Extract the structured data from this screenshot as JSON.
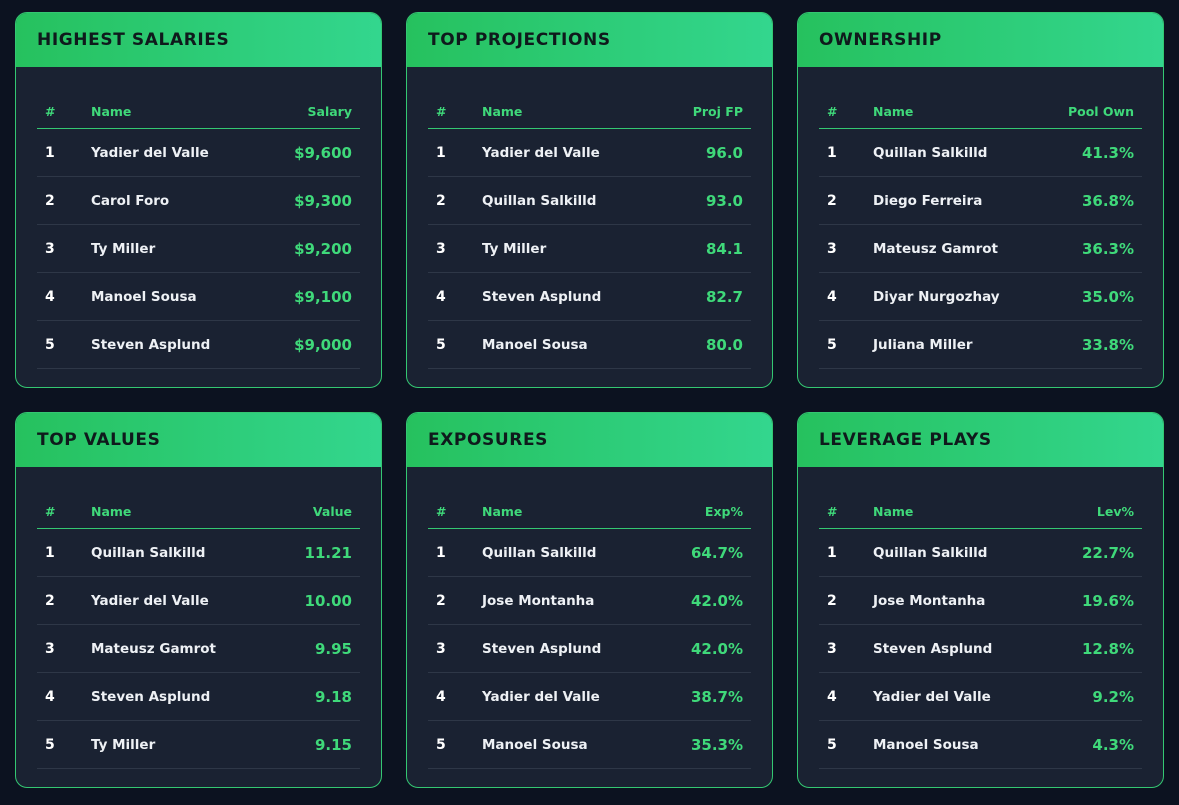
{
  "cards": [
    {
      "title": "HIGHEST SALARIES",
      "headers": {
        "num": "#",
        "name": "Name",
        "value": "Salary"
      },
      "rows": [
        {
          "num": "1",
          "name": "Yadier del Valle",
          "value": "$9,600"
        },
        {
          "num": "2",
          "name": "Carol Foro",
          "value": "$9,300"
        },
        {
          "num": "3",
          "name": "Ty Miller",
          "value": "$9,200"
        },
        {
          "num": "4",
          "name": "Manoel Sousa",
          "value": "$9,100"
        },
        {
          "num": "5",
          "name": "Steven Asplund",
          "value": "$9,000"
        }
      ]
    },
    {
      "title": "TOP PROJECTIONS",
      "headers": {
        "num": "#",
        "name": "Name",
        "value": "Proj FP"
      },
      "rows": [
        {
          "num": "1",
          "name": "Yadier del Valle",
          "value": "96.0"
        },
        {
          "num": "2",
          "name": "Quillan Salkilld",
          "value": "93.0"
        },
        {
          "num": "3",
          "name": "Ty Miller",
          "value": "84.1"
        },
        {
          "num": "4",
          "name": "Steven Asplund",
          "value": "82.7"
        },
        {
          "num": "5",
          "name": "Manoel Sousa",
          "value": "80.0"
        }
      ]
    },
    {
      "title": "OWNERSHIP",
      "headers": {
        "num": "#",
        "name": "Name",
        "value": "Pool Own"
      },
      "rows": [
        {
          "num": "1",
          "name": "Quillan Salkilld",
          "value": "41.3%"
        },
        {
          "num": "2",
          "name": "Diego Ferreira",
          "value": "36.8%"
        },
        {
          "num": "3",
          "name": "Mateusz Gamrot",
          "value": "36.3%"
        },
        {
          "num": "4",
          "name": "Diyar Nurgozhay",
          "value": "35.0%"
        },
        {
          "num": "5",
          "name": "Juliana Miller",
          "value": "33.8%"
        }
      ]
    },
    {
      "title": "TOP VALUES",
      "headers": {
        "num": "#",
        "name": "Name",
        "value": "Value"
      },
      "rows": [
        {
          "num": "1",
          "name": "Quillan Salkilld",
          "value": "11.21"
        },
        {
          "num": "2",
          "name": "Yadier del Valle",
          "value": "10.00"
        },
        {
          "num": "3",
          "name": "Mateusz Gamrot",
          "value": "9.95"
        },
        {
          "num": "4",
          "name": "Steven Asplund",
          "value": "9.18"
        },
        {
          "num": "5",
          "name": "Ty Miller",
          "value": "9.15"
        }
      ]
    },
    {
      "title": "EXPOSURES",
      "headers": {
        "num": "#",
        "name": "Name",
        "value": "Exp%"
      },
      "rows": [
        {
          "num": "1",
          "name": "Quillan Salkilld",
          "value": "64.7%"
        },
        {
          "num": "2",
          "name": "Jose Montanha",
          "value": "42.0%"
        },
        {
          "num": "3",
          "name": "Steven Asplund",
          "value": "42.0%"
        },
        {
          "num": "4",
          "name": "Yadier del Valle",
          "value": "38.7%"
        },
        {
          "num": "5",
          "name": "Manoel Sousa",
          "value": "35.3%"
        }
      ]
    },
    {
      "title": "LEVERAGE PLAYS",
      "headers": {
        "num": "#",
        "name": "Name",
        "value": "Lev%"
      },
      "rows": [
        {
          "num": "1",
          "name": "Quillan Salkilld",
          "value": "22.7%"
        },
        {
          "num": "2",
          "name": "Jose Montanha",
          "value": "19.6%"
        },
        {
          "num": "3",
          "name": "Steven Asplund",
          "value": "12.8%"
        },
        {
          "num": "4",
          "name": "Yadier del Valle",
          "value": "9.2%"
        },
        {
          "num": "5",
          "name": "Manoel Sousa",
          "value": "4.3%"
        }
      ]
    }
  ],
  "colors": {
    "accent": "#3fd97a",
    "header_gradient_start": "#26c15e",
    "header_gradient_end": "#33d68e",
    "card_background": "#1a2232",
    "page_background": "#0c1220"
  }
}
